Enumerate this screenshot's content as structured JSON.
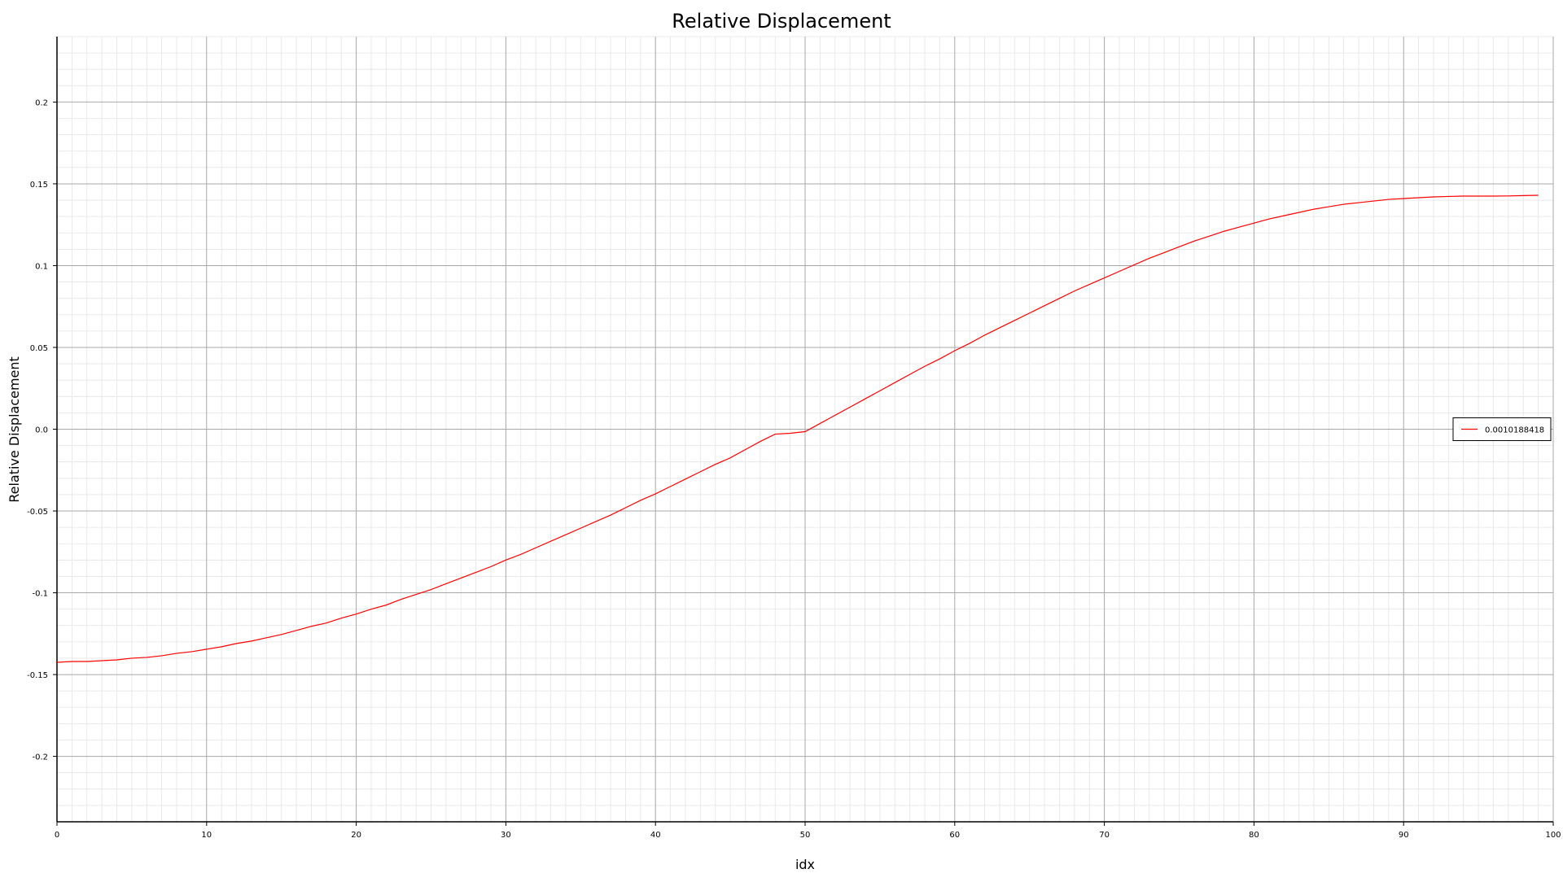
{
  "chart_data": {
    "type": "line",
    "title": "Relative Displacement",
    "xlabel": "idx",
    "ylabel": "Relative Displacement",
    "xlim": [
      0,
      100
    ],
    "ylim": [
      -0.24,
      0.24
    ],
    "xticks": [
      0,
      10,
      20,
      30,
      40,
      50,
      60,
      70,
      80,
      90,
      100
    ],
    "xtick_labels": [
      "0",
      "10",
      "20",
      "30",
      "40",
      "50",
      "60",
      "70",
      "80",
      "90",
      "100"
    ],
    "yticks": [
      -0.2,
      -0.15,
      -0.1,
      -0.05,
      0.0,
      0.05,
      0.1,
      0.15,
      0.2
    ],
    "ytick_labels": [
      "-0.2",
      "-0.15",
      "-0.1",
      "-0.05",
      "0.0",
      "0.05",
      "0.1",
      "0.15",
      "0.2"
    ],
    "grid": true,
    "minor_grid": true,
    "legend_position": "right",
    "series": [
      {
        "name": "0.0010188418",
        "color": "#ff0000",
        "x": [
          0,
          1,
          2,
          3,
          4,
          5,
          6,
          7,
          8,
          9,
          10,
          11,
          12,
          13,
          14,
          15,
          16,
          17,
          18,
          19,
          20,
          21,
          22,
          23,
          24,
          25,
          26,
          27,
          28,
          29,
          30,
          31,
          32,
          33,
          34,
          35,
          36,
          37,
          38,
          39,
          40,
          41,
          42,
          43,
          44,
          45,
          46,
          47,
          48,
          49,
          50,
          51,
          52,
          53,
          54,
          55,
          56,
          57,
          58,
          59,
          60,
          61,
          62,
          63,
          64,
          65,
          66,
          67,
          68,
          69,
          70,
          71,
          72,
          73,
          74,
          75,
          76,
          77,
          78,
          79,
          80,
          81,
          82,
          83,
          84,
          85,
          86,
          87,
          88,
          89,
          90,
          91,
          92,
          93,
          94,
          95,
          96,
          97,
          98,
          99
        ],
        "y": [
          -0.1425,
          -0.142,
          -0.142,
          -0.1415,
          -0.141,
          -0.14,
          -0.1395,
          -0.1385,
          -0.137,
          -0.136,
          -0.1345,
          -0.133,
          -0.131,
          -0.1295,
          -0.1275,
          -0.1255,
          -0.123,
          -0.1205,
          -0.1185,
          -0.1155,
          -0.113,
          -0.11,
          -0.1075,
          -0.104,
          -0.101,
          -0.098,
          -0.0945,
          -0.091,
          -0.0875,
          -0.084,
          -0.08,
          -0.0765,
          -0.0725,
          -0.0685,
          -0.0645,
          -0.0605,
          -0.0565,
          -0.0525,
          -0.048,
          -0.0435,
          -0.0395,
          -0.035,
          -0.0305,
          -0.026,
          -0.0215,
          -0.0175,
          -0.0125,
          -0.0075,
          -0.003,
          -0.0025,
          -0.0015,
          0.0035,
          0.0085,
          0.0135,
          0.0185,
          0.0235,
          0.0285,
          0.0335,
          0.0385,
          0.043,
          0.048,
          0.0525,
          0.0575,
          0.062,
          0.0665,
          0.071,
          0.0755,
          0.08,
          0.0845,
          0.0885,
          0.0925,
          0.0965,
          0.1005,
          0.1045,
          0.108,
          0.1115,
          0.115,
          0.118,
          0.121,
          0.1235,
          0.126,
          0.1285,
          0.1305,
          0.1325,
          0.1345,
          0.136,
          0.1375,
          0.1385,
          0.1395,
          0.1405,
          0.141,
          0.1415,
          0.142,
          0.1423,
          0.1425,
          0.1425,
          0.1425,
          0.1426,
          0.1428,
          0.143
        ]
      }
    ]
  }
}
